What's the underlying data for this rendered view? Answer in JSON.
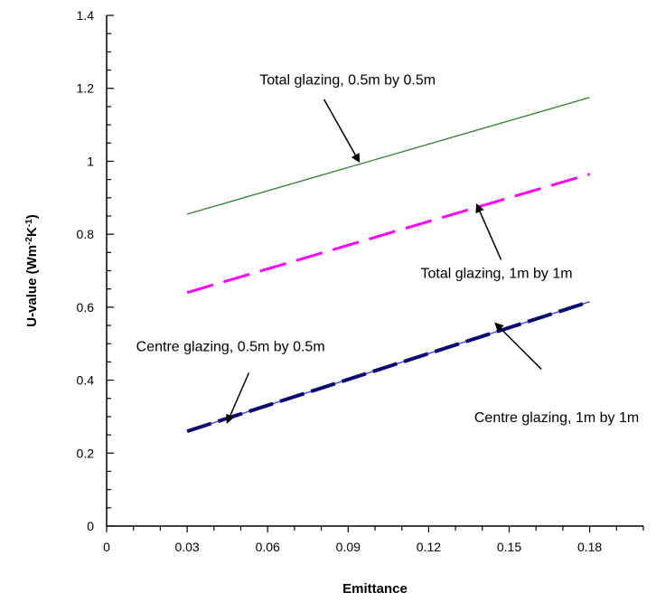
{
  "chart_data": {
    "type": "line",
    "title": "",
    "xlabel": "Emittance",
    "ylabel_main": "U-value (Wm",
    "ylabel_sup1": "-2",
    "ylabel_mid": "K",
    "ylabel_sup2": "-1",
    "ylabel_end": ")",
    "xlim": [
      0,
      0.2
    ],
    "ylim": [
      0,
      1.4
    ],
    "x_ticks": [
      0,
      0.03,
      0.06,
      0.09,
      0.12,
      0.15,
      0.18
    ],
    "x_tick_labels": [
      "0",
      "0.03",
      "0.06",
      "0.09",
      "0.12",
      "0.15",
      "0.18"
    ],
    "y_ticks": [
      0,
      0.2,
      0.4,
      0.6,
      0.8,
      1.0,
      1.2,
      1.4
    ],
    "y_tick_labels": [
      "0",
      "0.2",
      "0.4",
      "0.6",
      "0.8",
      "1",
      "1.2",
      "1.4"
    ],
    "grid": false,
    "series": [
      {
        "key": "total-05",
        "x": [
          0.03,
          0.18
        ],
        "y": [
          0.855,
          1.175
        ],
        "color": "#2e7d32",
        "style": "solid-thin"
      },
      {
        "key": "total-1",
        "x": [
          0.03,
          0.18
        ],
        "y": [
          0.64,
          0.965
        ],
        "color": "#ff00ff",
        "style": "dashed"
      },
      {
        "key": "centre-05",
        "x": [
          0.03,
          0.18
        ],
        "y": [
          0.26,
          0.615
        ],
        "color": "#3a3aff",
        "style": "solid-thin"
      },
      {
        "key": "centre-1",
        "x": [
          0.03,
          0.18
        ],
        "y": [
          0.26,
          0.615
        ],
        "color": "#0a0a6e",
        "style": "dashed-thick"
      }
    ],
    "annotations": [
      {
        "key": "total-05",
        "text": "Total glazing, 0.5m  by 0.5m",
        "text_x": 0.057,
        "text_y": 1.21,
        "arrow_from": [
          0.081,
          1.17
        ],
        "arrow_to": [
          0.094,
          1.0
        ]
      },
      {
        "key": "total-1",
        "text": "Total glazing, 1m  by 1m",
        "text_x": 0.117,
        "text_y": 0.68,
        "arrow_from": [
          0.147,
          0.73
        ],
        "arrow_to": [
          0.138,
          0.88
        ]
      },
      {
        "key": "centre-05",
        "text": "Centre glazing, 0.5m  by 0.5m",
        "text_x": 0.011,
        "text_y": 0.48,
        "arrow_from": [
          0.053,
          0.42
        ],
        "arrow_to": [
          0.045,
          0.285
        ]
      },
      {
        "key": "centre-1",
        "text": "Centre glazing, 1m  by 1m",
        "text_x": 0.137,
        "text_y": 0.285,
        "arrow_from": [
          0.162,
          0.43
        ],
        "arrow_to": [
          0.145,
          0.555
        ]
      }
    ]
  }
}
